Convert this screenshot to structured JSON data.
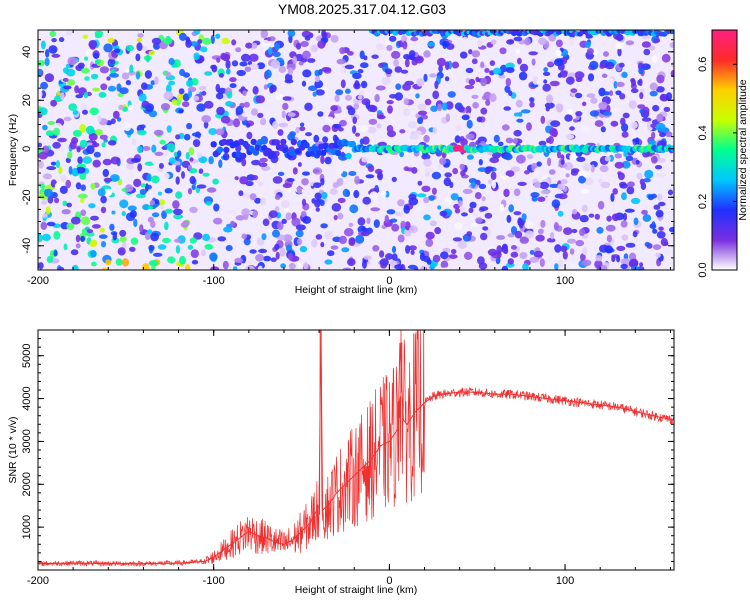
{
  "title": "YM08.2025.317.04.12.G03",
  "colors": {
    "snr_line": "#f03030",
    "background": "#ffffff",
    "spectrogram_low": "#f2eaff",
    "spectrogram_mid": "#7a2fe0",
    "spectrogram_high": "#ff2a6a"
  },
  "chart_data": [
    {
      "type": "heatmap",
      "name": "spectrogram",
      "xlabel": "Height of straight line (km)",
      "ylabel": "Frequency (Hz)",
      "xlim": [
        -200,
        162
      ],
      "ylim": [
        -50,
        49
      ],
      "xticks": [
        -200,
        -100,
        0,
        100
      ],
      "yticks": [
        -40,
        -20,
        0,
        20,
        40
      ],
      "grid": false,
      "features": [
        {
          "frequency_hz": 0,
          "x_range_km": [
            -100,
            162
          ],
          "peak_x_km": 40,
          "peak_amplitude": 0.7,
          "typical_amplitude": 0.35
        },
        {
          "frequency_hz": 48,
          "x_range_km": [
            -10,
            162
          ],
          "typical_amplitude": 0.25
        }
      ],
      "colorbar": {
        "label": "Normalized spectral amplitude",
        "range": [
          0.0,
          0.7
        ],
        "ticks": [
          0.0,
          0.2,
          0.4,
          0.6
        ],
        "tick_labels": [
          "0.0",
          "0.2",
          "0.4",
          "0.6"
        ],
        "colormap": [
          "#ffffff",
          "#7a2fe0",
          "#2030ff",
          "#00c8ff",
          "#00ff90",
          "#c8ff00",
          "#ffd000",
          "#ff2a2a",
          "#ff2080"
        ]
      }
    },
    {
      "type": "line",
      "name": "snr",
      "xlabel": "Height of straight line (km)",
      "ylabel": "SNR (10 * v/v)",
      "xlim": [
        -200,
        162
      ],
      "ylim": [
        0,
        5600
      ],
      "xticks": [
        -200,
        -100,
        0,
        100
      ],
      "yticks": [
        1000,
        2000,
        3000,
        4000,
        5000
      ],
      "grid": false,
      "series": [
        {
          "x": [
            -200,
            -180,
            -160,
            -140,
            -120,
            -105,
            -100,
            -95,
            -90,
            -85,
            -80,
            -75,
            -70,
            -65,
            -60,
            -55,
            -50,
            -45,
            -40,
            -39,
            -38,
            -35,
            -30,
            -25,
            -20,
            -15,
            -10,
            -5,
            0,
            5,
            6,
            8,
            10,
            15,
            20,
            25,
            30,
            40,
            50,
            60,
            70,
            80,
            90,
            100,
            110,
            120,
            130,
            140,
            150,
            162
          ],
          "y": [
            150,
            160,
            150,
            150,
            160,
            200,
            300,
            450,
            600,
            750,
            900,
            800,
            750,
            650,
            600,
            700,
            900,
            1100,
            1500,
            5600,
            1400,
            1500,
            1800,
            2000,
            2200,
            2400,
            2600,
            2900,
            3000,
            3300,
            5300,
            3500,
            3400,
            3700,
            3900,
            4050,
            4100,
            4150,
            4150,
            4100,
            4100,
            4050,
            4000,
            3950,
            3900,
            3850,
            3800,
            3700,
            3600,
            3500
          ]
        }
      ]
    }
  ]
}
